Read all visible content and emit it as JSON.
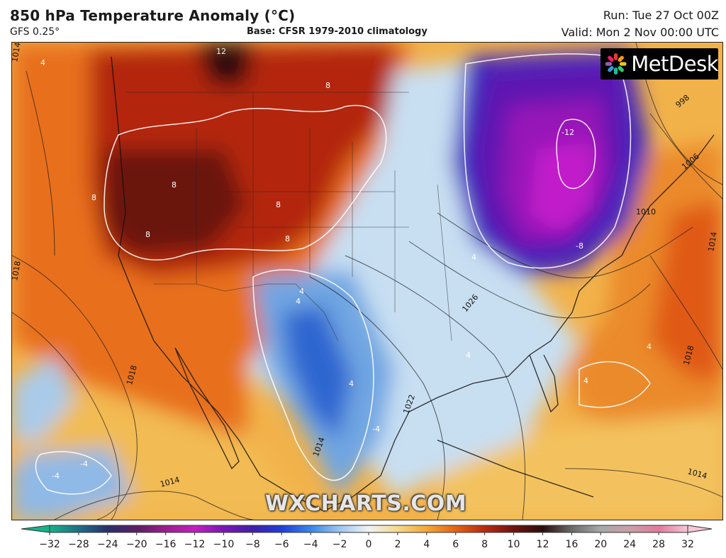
{
  "header": {
    "title": "850 hPa Temperature Anomaly (°C)",
    "model": "GFS 0.25°",
    "base": "Base: CFSR 1979-2010 climatology",
    "run": "Run: Tue 27 Oct 00Z",
    "valid": "Valid: Mon 2 Nov 00:00 UTC"
  },
  "branding": {
    "logo_text": "MetDesk",
    "watermark": "WXCHARTS.COM"
  },
  "map": {
    "isobar_labels": [
      "1014",
      "1018",
      "1018",
      "1014",
      "1022",
      "1026",
      "1010",
      "1014",
      "1018",
      "1014",
      "1006",
      "998",
      "1014"
    ],
    "anomaly_labels": [
      "12",
      "8",
      "8",
      "8",
      "8",
      "8",
      "8",
      "4",
      "4",
      "4",
      "-12",
      "-8",
      "4",
      "4",
      "-4",
      "-4",
      "-4",
      "4",
      "4",
      "4"
    ]
  },
  "colorbar": {
    "ticks": [
      "−32",
      "−28",
      "−24",
      "−20",
      "−16",
      "−12",
      "−10",
      "−8",
      "−6",
      "−4",
      "−2",
      "0",
      "2",
      "4",
      "6",
      "8",
      "10",
      "12",
      "16",
      "20",
      "24",
      "28",
      "32"
    ],
    "colors": [
      "#16b38a",
      "#1f6f86",
      "#2a2f6b",
      "#5a1f63",
      "#9b1d8a",
      "#c21fc0",
      "#7a16b4",
      "#3e1fa8",
      "#1f3fd9",
      "#3a86e8",
      "#9cc6ee",
      "#f1f3f6",
      "#f4d98a",
      "#f4a736",
      "#e36414",
      "#b82a10",
      "#6e1410",
      "#2a0e0c",
      "#6b6b6b",
      "#a8a8a8",
      "#c9a0a8",
      "#e07a9a",
      "#f6c6d8"
    ]
  }
}
